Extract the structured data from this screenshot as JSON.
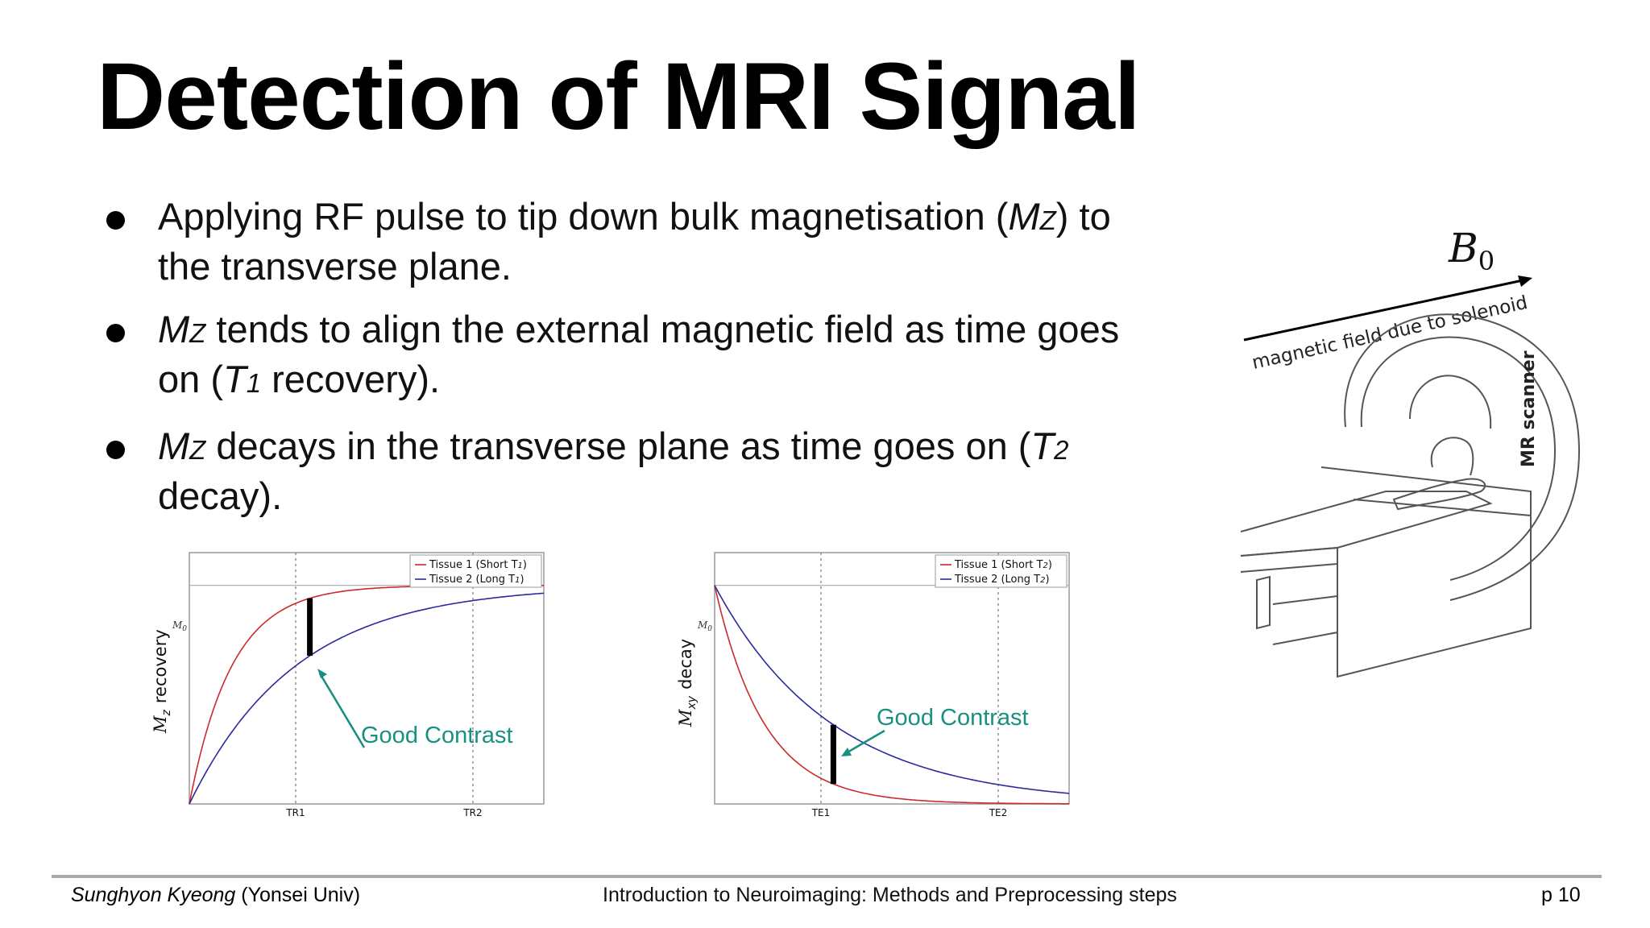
{
  "slide": {
    "title": "Detection of MRI Signal",
    "bullets": [
      {
        "pre": "Applying RF pulse to tip down bulk magnetisation (",
        "var": "M",
        "sub": "Z",
        "post": ") to the transverse plane."
      },
      {
        "var": "M",
        "sub": "Z",
        "post": " tends to align the external magnetic field as time goes on (",
        "var2": "T",
        "sub2": "1",
        "post2": " recovery)."
      },
      {
        "var": "M",
        "sub": "Z",
        "post": " decays in the transverse plane as time goes on (",
        "var2": "T",
        "sub2": "2",
        "post2": " decay)."
      }
    ]
  },
  "scanner": {
    "b0_symbol": "B",
    "b0_sub": "0",
    "field_label": "magnetic field due to solenoid",
    "scanner_label": "MR scanner"
  },
  "chart_data": [
    {
      "type": "line",
      "ylabel_var": "M",
      "ylabel_sub": "z",
      "ylabel_text": "recovery",
      "m0_label": "M",
      "m0_sub": "0",
      "xticks": [
        "TR1",
        "TR2"
      ],
      "tick_positions": [
        0.3,
        0.8
      ],
      "xlim": [
        0,
        1
      ],
      "ylim": [
        0,
        1.15
      ],
      "m0_level": 1.0,
      "legend_position": "top-right",
      "series": [
        {
          "name": "Tissue 1 (Short T",
          "name_sub": "1",
          "name_end": ")",
          "color": "#cc2a2a",
          "tau": 0.12,
          "kind": "recovery"
        },
        {
          "name": "Tissue 2 (Long T",
          "name_sub": "1",
          "name_end": ")",
          "color": "#2a2a9e",
          "tau": 0.3,
          "kind": "recovery"
        }
      ],
      "contrast_x": 0.34,
      "annotation": "Good Contrast",
      "annotation_color": "#1a9080"
    },
    {
      "type": "line",
      "ylabel_var": "M",
      "ylabel_sub": "xy",
      "ylabel_text": "decay",
      "m0_label": "M",
      "m0_sub": "0",
      "xticks": [
        "TE1",
        "TE2"
      ],
      "tick_positions": [
        0.3,
        0.8
      ],
      "xlim": [
        0,
        1
      ],
      "ylim": [
        0,
        1.15
      ],
      "m0_level": 1.0,
      "legend_position": "top-right",
      "series": [
        {
          "name": "Tissue 1 (Short T",
          "name_sub": "2",
          "name_end": ")",
          "color": "#cc2a2a",
          "tau": 0.14,
          "kind": "decay"
        },
        {
          "name": "Tissue 2 (Long T",
          "name_sub": "2",
          "name_end": ")",
          "color": "#2a2a9e",
          "tau": 0.33,
          "kind": "decay"
        }
      ],
      "contrast_x": 0.335,
      "annotation": "Good Contrast",
      "annotation_color": "#1a9080"
    }
  ],
  "footer": {
    "author": "Sunghyon Kyeong",
    "affiliation": " (Yonsei Univ)",
    "course": "Introduction to Neuroimaging: Methods and Preprocessing steps",
    "page": "p 10"
  }
}
